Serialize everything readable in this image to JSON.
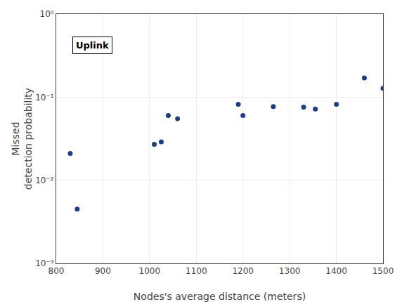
{
  "chart_data": {
    "type": "scatter",
    "x": [
      830,
      845,
      1010,
      1025,
      1040,
      1060,
      1190,
      1200,
      1265,
      1330,
      1355,
      1400,
      1460,
      1500
    ],
    "values": [
      0.021,
      0.0045,
      0.027,
      0.029,
      0.06,
      0.055,
      0.082,
      0.06,
      0.077,
      0.076,
      0.072,
      0.082,
      0.17,
      0.128
    ],
    "color": "#1c3f8c",
    "xlabel": "Nodes's average distance (meters)",
    "ylabel": "Missed\ndetection probability",
    "annotation": "Uplink",
    "xlim": [
      800,
      1500
    ],
    "ylim": [
      0.001,
      1
    ],
    "xticks": [
      800,
      900,
      1000,
      1100,
      1200,
      1300,
      1400,
      1500
    ],
    "yticks": [
      {
        "value": 0.001,
        "label": "10⁻³"
      },
      {
        "value": 0.01,
        "label": "10⁻²"
      },
      {
        "value": 0.1,
        "label": "10⁻¹"
      },
      {
        "value": 1,
        "label": "10⁰"
      }
    ],
    "log": "y",
    "grid": true
  }
}
